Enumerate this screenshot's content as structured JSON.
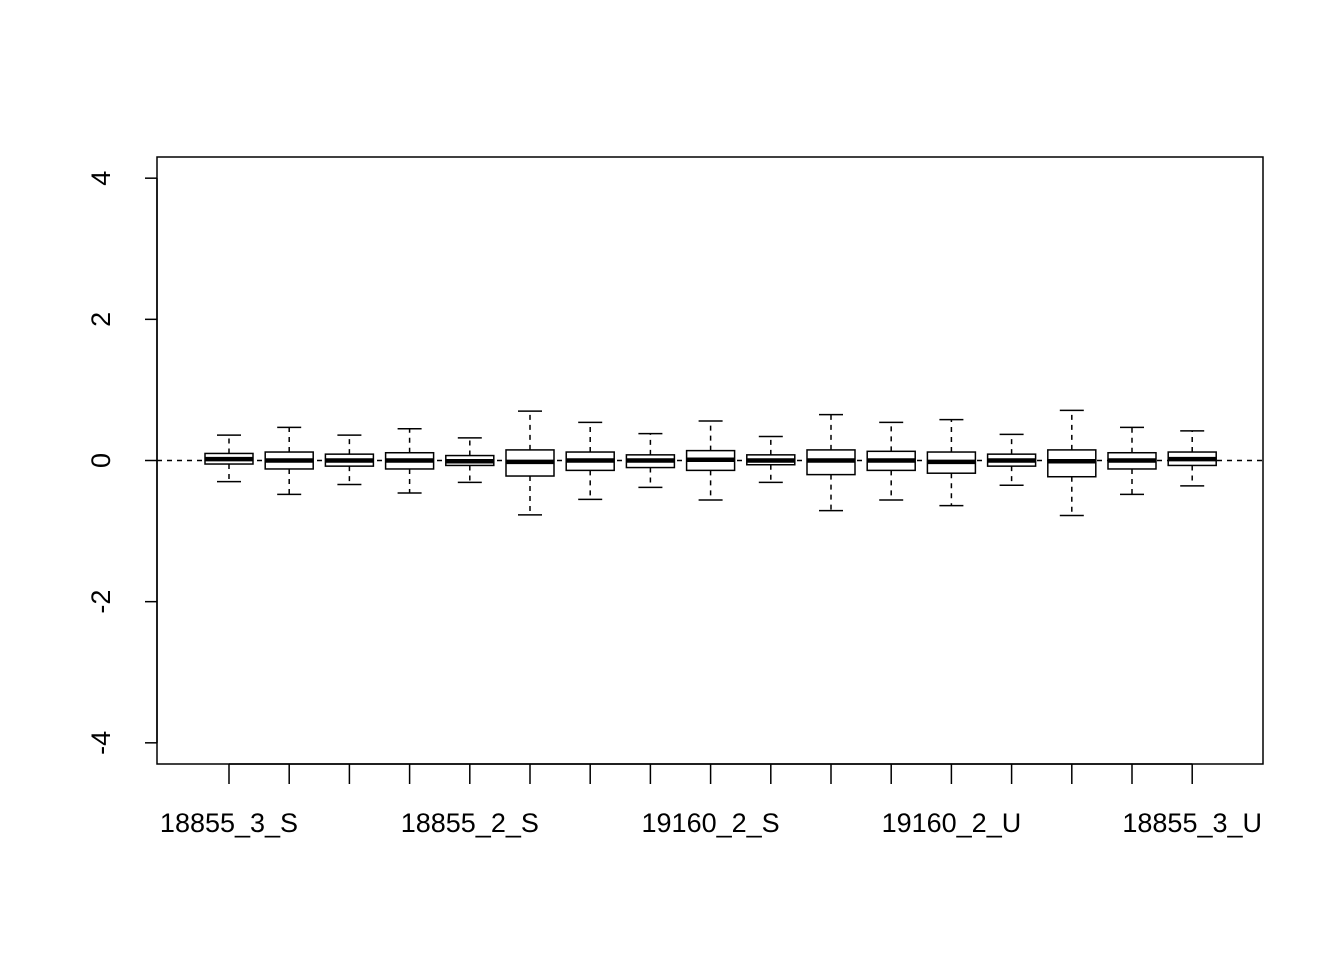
{
  "chart_data": {
    "type": "boxplot",
    "ylim": [
      -4.3,
      4.3
    ],
    "yticks": [
      -4,
      -2,
      0,
      2,
      4
    ],
    "ytick_labels": [
      "-4",
      "-2",
      "0",
      "2",
      "4"
    ],
    "x_tick_labels": [
      {
        "index": 1,
        "label": "18855_3_S"
      },
      {
        "index": 5,
        "label": "18855_2_S"
      },
      {
        "index": 9,
        "label": "19160_2_S"
      },
      {
        "index": 13,
        "label": "19160_2_U"
      },
      {
        "index": 17,
        "label": "18855_3_U"
      }
    ],
    "reference_line": {
      "y": 0,
      "style": "dashed"
    },
    "boxes": [
      {
        "index": 1,
        "whisker_low": -0.3,
        "q1": -0.05,
        "median": 0.02,
        "q3": 0.1,
        "whisker_high": 0.36
      },
      {
        "index": 2,
        "whisker_low": -0.48,
        "q1": -0.12,
        "median": 0.0,
        "q3": 0.12,
        "whisker_high": 0.47
      },
      {
        "index": 3,
        "whisker_low": -0.34,
        "q1": -0.08,
        "median": 0.0,
        "q3": 0.09,
        "whisker_high": 0.36
      },
      {
        "index": 4,
        "whisker_low": -0.46,
        "q1": -0.12,
        "median": 0.0,
        "q3": 0.11,
        "whisker_high": 0.45
      },
      {
        "index": 5,
        "whisker_low": -0.31,
        "q1": -0.07,
        "median": -0.01,
        "q3": 0.07,
        "whisker_high": 0.32
      },
      {
        "index": 6,
        "whisker_low": -0.77,
        "q1": -0.22,
        "median": -0.02,
        "q3": 0.15,
        "whisker_high": 0.7
      },
      {
        "index": 7,
        "whisker_low": -0.55,
        "q1": -0.14,
        "median": 0.0,
        "q3": 0.12,
        "whisker_high": 0.54
      },
      {
        "index": 8,
        "whisker_low": -0.38,
        "q1": -0.1,
        "median": 0.0,
        "q3": 0.08,
        "whisker_high": 0.38
      },
      {
        "index": 9,
        "whisker_low": -0.56,
        "q1": -0.14,
        "median": 0.01,
        "q3": 0.14,
        "whisker_high": 0.56
      },
      {
        "index": 10,
        "whisker_low": -0.31,
        "q1": -0.06,
        "median": 0.0,
        "q3": 0.08,
        "whisker_high": 0.34
      },
      {
        "index": 11,
        "whisker_low": -0.71,
        "q1": -0.2,
        "median": 0.0,
        "q3": 0.15,
        "whisker_high": 0.65
      },
      {
        "index": 12,
        "whisker_low": -0.56,
        "q1": -0.14,
        "median": 0.0,
        "q3": 0.13,
        "whisker_high": 0.54
      },
      {
        "index": 13,
        "whisker_low": -0.64,
        "q1": -0.18,
        "median": -0.02,
        "q3": 0.12,
        "whisker_high": 0.58
      },
      {
        "index": 14,
        "whisker_low": -0.35,
        "q1": -0.08,
        "median": 0.0,
        "q3": 0.09,
        "whisker_high": 0.37
      },
      {
        "index": 15,
        "whisker_low": -0.78,
        "q1": -0.23,
        "median": -0.01,
        "q3": 0.15,
        "whisker_high": 0.71
      },
      {
        "index": 16,
        "whisker_low": -0.48,
        "q1": -0.12,
        "median": 0.0,
        "q3": 0.11,
        "whisker_high": 0.47
      },
      {
        "index": 17,
        "whisker_low": -0.36,
        "q1": -0.07,
        "median": 0.02,
        "q3": 0.12,
        "whisker_high": 0.42
      }
    ]
  }
}
